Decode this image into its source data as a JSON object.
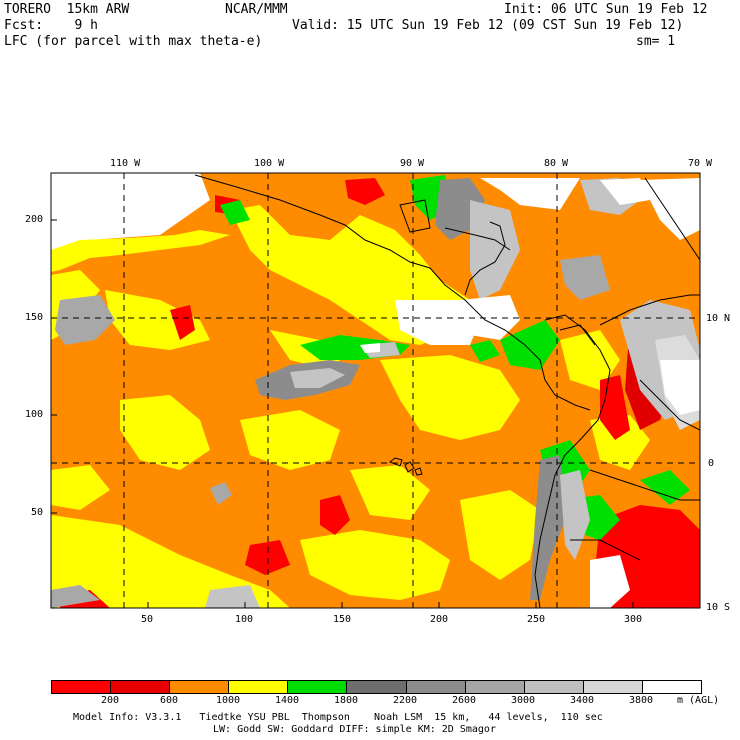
{
  "header": {
    "model": "TORERO  15km ARW",
    "org": "NCAR/MMM",
    "init": "Init: 06 UTC Sun 19 Feb 12",
    "fcst": "Fcst:    9 h",
    "valid": "Valid: 15 UTC Sun 19 Feb 12 (09 CST Sun 19 Feb 12)",
    "field": "LFC (for parcel with max theta-e)",
    "smooth": "sm= 1"
  },
  "map": {
    "lon_labels": [
      "110 W",
      "100 W",
      "90 W",
      "80 W",
      "70 W"
    ],
    "lat_labels": [
      "10 N",
      "0",
      "10 S"
    ],
    "x_ticks": [
      "50",
      "100",
      "150",
      "200",
      "250",
      "300"
    ],
    "y_ticks": [
      "200",
      "150",
      "100",
      "50"
    ],
    "colors": {
      "red": "#ff0000",
      "darkred": "#e00000",
      "orange": "#ff8c00",
      "yellow": "#ffff00",
      "green": "#00e000",
      "gray1": "#6e6e6e",
      "gray2": "#8c8c8c",
      "gray3": "#a8a8a8",
      "gray4": "#c4c4c4",
      "gray5": "#dcdcdc",
      "white": "#ffffff"
    }
  },
  "legend": {
    "colors": [
      "#ff0000",
      "#e60000",
      "#ff8c00",
      "#ffff00",
      "#00dc00",
      "#6e6e6e",
      "#8c8c8c",
      "#a5a5a5",
      "#bebebe",
      "#d7d7d7",
      "#ffffff"
    ],
    "ticks": [
      "200",
      "600",
      "1000",
      "1400",
      "1800",
      "2200",
      "2600",
      "3000",
      "3400",
      "3800"
    ],
    "units": "m (AGL)"
  },
  "footer": {
    "line1": "Model Info: V3.3.1   Tiedtke YSU PBL  Thompson    Noah LSM  15 km,   44 levels,  110 sec",
    "line2": "LW: Godd SW: Goddard DIFF: simple KM: 2D Smagor"
  }
}
